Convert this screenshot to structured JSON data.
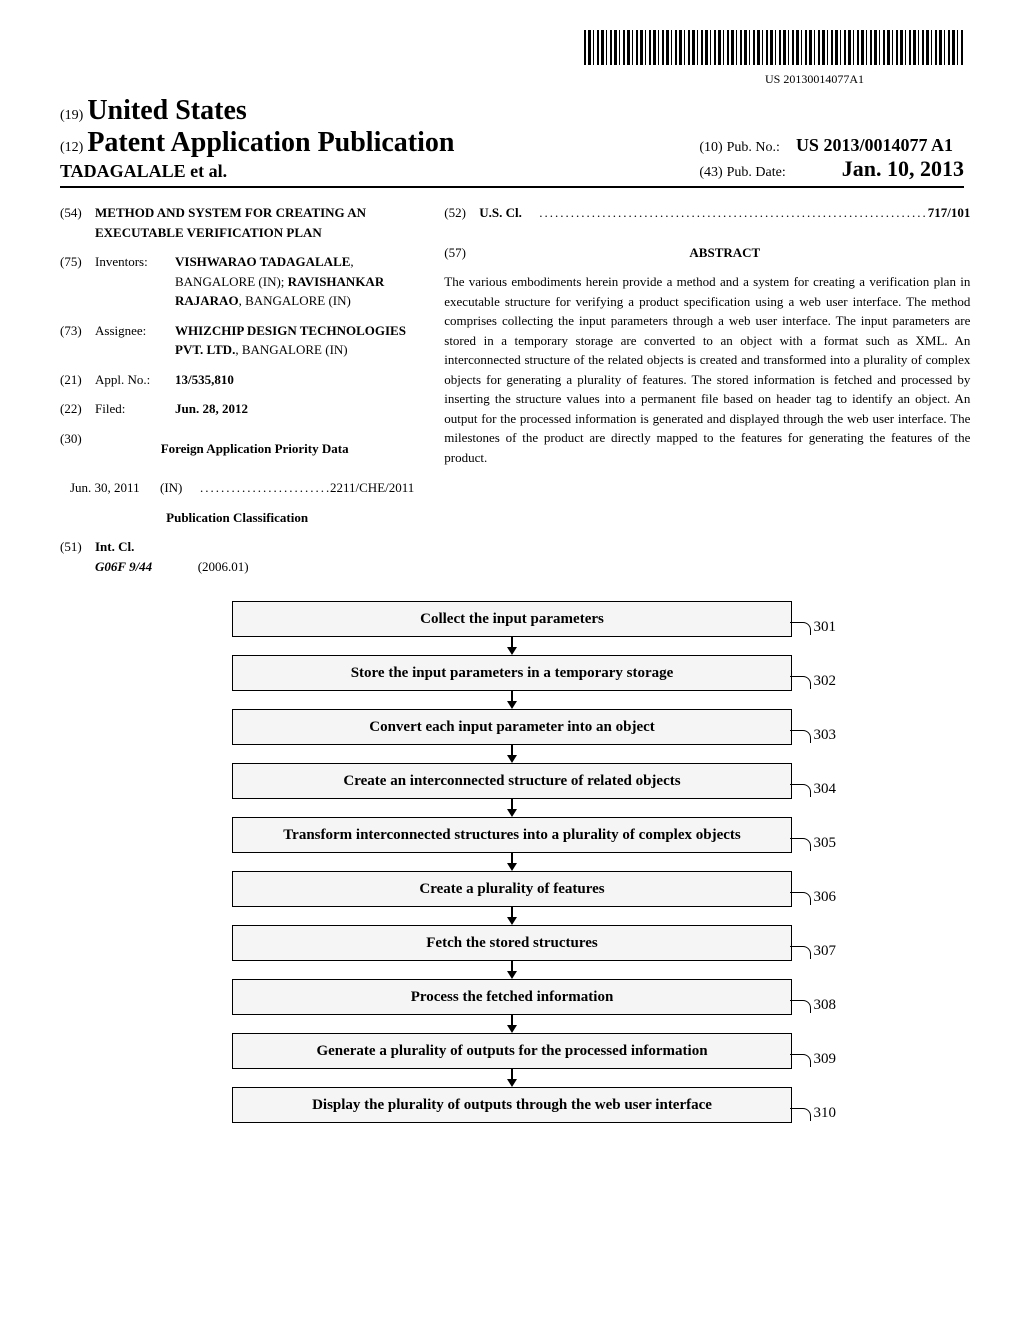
{
  "barcode_number": "US 20130014077A1",
  "header": {
    "country_code": "(19)",
    "country": "United States",
    "pub_code": "(12)",
    "pub_type": "Patent Application Publication",
    "authors": "TADAGALALE et al.",
    "pubno_code": "(10)",
    "pubno_label": "Pub. No.:",
    "pubno": "US 2013/0014077 A1",
    "pubdate_code": "(43)",
    "pubdate_label": "Pub. Date:",
    "pubdate": "Jan. 10, 2013"
  },
  "fields": {
    "title_code": "(54)",
    "title": "METHOD AND SYSTEM FOR CREATING AN EXECUTABLE VERIFICATION PLAN",
    "inventors_code": "(75)",
    "inventors_label": "Inventors:",
    "inventor1_name": "VISHWARAO TADAGALALE",
    "inventor1_loc": ", BANGALORE (IN); ",
    "inventor2_name": "RAVISHANKAR RAJARAO",
    "inventor2_loc": ", BANGALORE (IN)",
    "assignee_code": "(73)",
    "assignee_label": "Assignee:",
    "assignee_name": "WHIZCHIP DESIGN TECHNOLOGIES PVT. LTD.",
    "assignee_loc": ", BANGALORE (IN)",
    "applno_code": "(21)",
    "applno_label": "Appl. No.:",
    "applno": "13/535,810",
    "filed_code": "(22)",
    "filed_label": "Filed:",
    "filed": "Jun. 28, 2012",
    "priority_code": "(30)",
    "priority_heading": "Foreign Application Priority Data",
    "priority_date": "Jun. 30, 2011",
    "priority_country": "(IN)",
    "priority_num": "2211/CHE/2011",
    "pubclass_heading": "Publication Classification",
    "intcl_code": "(51)",
    "intcl_label": "Int. Cl.",
    "intcl_class": "G06F 9/44",
    "intcl_year": "(2006.01)",
    "uscl_code": "(52)",
    "uscl_label": "U.S. Cl.",
    "uscl_val": "717/101",
    "abstract_code": "(57)",
    "abstract_heading": "ABSTRACT",
    "abstract_text": "The various embodiments herein provide a method and a system for creating a verification plan in executable structure for verifying a product specification using a web user interface. The method comprises collecting the input parameters through a web user interface. The input parameters are stored in a temporary storage are converted to an object with a format such as XML. An interconnected structure of the related objects is created and transformed into a plurality of complex objects for generating a plurality of features. The stored information is fetched and processed by inserting the structure values into a permanent file based on header tag to identify an object. An output for the processed information is generated and displayed through the web user interface. The milestones of the product are directly mapped to the features for generating the features of the product."
  },
  "flowchart": {
    "nodes": [
      {
        "label": "Collect  the input parameters",
        "ref": "301"
      },
      {
        "label": "Store the input parameters in a temporary storage",
        "ref": "302"
      },
      {
        "label": "Convert each input parameter into an object",
        "ref": "303"
      },
      {
        "label": "Create  an interconnected structure of related objects",
        "ref": "304"
      },
      {
        "label": "Transform interconnected structures into a plurality of complex objects",
        "ref": "305"
      },
      {
        "label": "Create a plurality  of features",
        "ref": "306"
      },
      {
        "label": "Fetch the stored structures",
        "ref": "307"
      },
      {
        "label": "Process the fetched information",
        "ref": "308"
      },
      {
        "label": "Generate a plurality of outputs for the processed information",
        "ref": "309"
      },
      {
        "label": "Display the plurality of outputs through the web user interface",
        "ref": "310"
      }
    ]
  }
}
